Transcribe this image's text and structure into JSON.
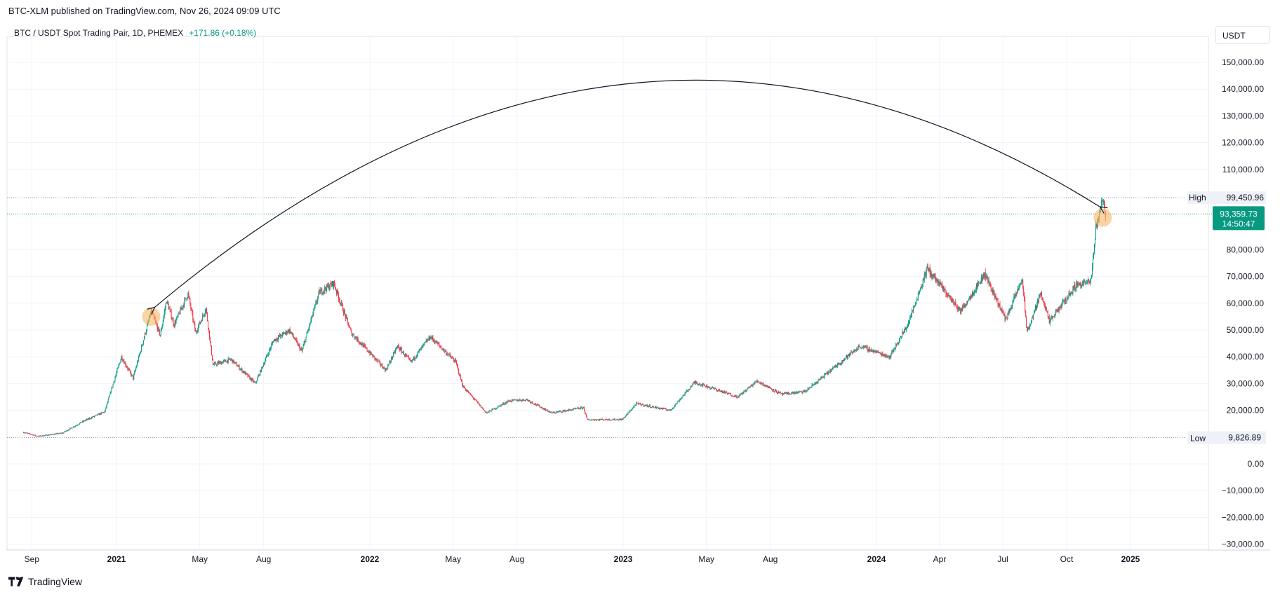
{
  "header": {
    "published": "BTC-XLM published on TradingView.com, Nov 26, 2024 09:09 UTC"
  },
  "legend": {
    "symbol": "BTC / USDT Spot Trading Pair, 1D, PHEMEX",
    "change": "+171.86 (+0.18%)"
  },
  "unit_button": "USDT",
  "footer": {
    "brand": "TradingView",
    "logo_icon": "tradingview-logo-icon"
  },
  "colors": {
    "up": "#089981",
    "down": "#f23645",
    "highlight": "#f7b866",
    "arrow": "#131722"
  },
  "chart_data": {
    "type": "candlestick",
    "yaxis": {
      "ylim": [
        -30000,
        155000
      ],
      "ticks": [
        -30000,
        -20000,
        -10000,
        0,
        20000,
        30000,
        40000,
        50000,
        60000,
        70000,
        80000,
        110000,
        120000,
        130000,
        140000,
        150000
      ],
      "tick_labels": [
        "−30,000.00",
        "−20,000.00",
        "−10,000.00",
        "0.00",
        "20,000.00",
        "30,000.00",
        "40,000.00",
        "50,000.00",
        "60,000.00",
        "70,000.00",
        "80,000.00",
        "110,000.00",
        "120,000.00",
        "130,000.00",
        "140,000.00",
        "150,000.00"
      ],
      "unit": "USDT"
    },
    "xaxis": {
      "range": [
        "2020-08-20",
        "2025-05-20"
      ],
      "ticks": [
        {
          "date": "2020-09-01",
          "label": "Sep",
          "bold": false
        },
        {
          "date": "2021-01-01",
          "label": "2021",
          "bold": true
        },
        {
          "date": "2021-05-01",
          "label": "May",
          "bold": false
        },
        {
          "date": "2021-08-01",
          "label": "Aug",
          "bold": false
        },
        {
          "date": "2022-01-01",
          "label": "2022",
          "bold": true
        },
        {
          "date": "2022-05-01",
          "label": "May",
          "bold": false
        },
        {
          "date": "2022-08-01",
          "label": "Aug",
          "bold": false
        },
        {
          "date": "2023-01-01",
          "label": "2023",
          "bold": true
        },
        {
          "date": "2023-05-01",
          "label": "May",
          "bold": false
        },
        {
          "date": "2023-08-01",
          "label": "Aug",
          "bold": false
        },
        {
          "date": "2024-01-01",
          "label": "2024",
          "bold": true
        },
        {
          "date": "2024-04-01",
          "label": "Apr",
          "bold": false
        },
        {
          "date": "2024-07-01",
          "label": "Jul",
          "bold": false
        },
        {
          "date": "2024-10-01",
          "label": "Oct",
          "bold": false
        },
        {
          "date": "2025-01-01",
          "label": "2025",
          "bold": true
        }
      ]
    },
    "price_path": [
      [
        "2020-08-20",
        11800
      ],
      [
        "2020-09-10",
        10300
      ],
      [
        "2020-10-15",
        11500
      ],
      [
        "2020-11-15",
        16000
      ],
      [
        "2020-12-15",
        19500
      ],
      [
        "2021-01-08",
        40000
      ],
      [
        "2021-01-25",
        32000
      ],
      [
        "2021-02-20",
        57000
      ],
      [
        "2021-03-05",
        48000
      ],
      [
        "2021-03-14",
        61000
      ],
      [
        "2021-03-25",
        52000
      ],
      [
        "2021-04-14",
        63500
      ],
      [
        "2021-04-25",
        49000
      ],
      [
        "2021-05-10",
        58000
      ],
      [
        "2021-05-20",
        37000
      ],
      [
        "2021-06-15",
        39000
      ],
      [
        "2021-07-20",
        30000
      ],
      [
        "2021-08-15",
        46000
      ],
      [
        "2021-09-07",
        50000
      ],
      [
        "2021-09-25",
        42000
      ],
      [
        "2021-10-20",
        64000
      ],
      [
        "2021-11-10",
        67500
      ],
      [
        "2021-12-05",
        49000
      ],
      [
        "2022-01-24",
        35000
      ],
      [
        "2022-02-10",
        44000
      ],
      [
        "2022-03-01",
        38000
      ],
      [
        "2022-03-29",
        47500
      ],
      [
        "2022-05-05",
        38000
      ],
      [
        "2022-05-15",
        29000
      ],
      [
        "2022-06-18",
        19000
      ],
      [
        "2022-07-20",
        23500
      ],
      [
        "2022-08-15",
        24000
      ],
      [
        "2022-09-20",
        19000
      ],
      [
        "2022-11-05",
        21000
      ],
      [
        "2022-11-10",
        16500
      ],
      [
        "2022-12-31",
        16600
      ],
      [
        "2023-01-20",
        22500
      ],
      [
        "2023-03-10",
        20000
      ],
      [
        "2023-04-14",
        30500
      ],
      [
        "2023-06-15",
        25000
      ],
      [
        "2023-07-13",
        31000
      ],
      [
        "2023-08-17",
        26000
      ],
      [
        "2023-09-20",
        27000
      ],
      [
        "2023-10-25",
        34500
      ],
      [
        "2023-12-08",
        44000
      ],
      [
        "2024-01-20",
        40000
      ],
      [
        "2024-02-15",
        52000
      ],
      [
        "2024-03-14",
        73000
      ],
      [
        "2024-05-01",
        57000
      ],
      [
        "2024-06-05",
        71000
      ],
      [
        "2024-07-05",
        54000
      ],
      [
        "2024-07-29",
        69000
      ],
      [
        "2024-08-05",
        49000
      ],
      [
        "2024-08-25",
        64000
      ],
      [
        "2024-09-06",
        53000
      ],
      [
        "2024-10-15",
        67000
      ],
      [
        "2024-11-05",
        68000
      ],
      [
        "2024-11-12",
        88000
      ],
      [
        "2024-11-22",
        99400
      ],
      [
        "2024-11-26",
        93360
      ]
    ],
    "last_price": {
      "value": 93359.73,
      "label": "93,359.73",
      "countdown": "14:50:47"
    },
    "high": {
      "label": "High",
      "value": 99450.96,
      "value_label": "99,450.96",
      "date": "2024-11-22"
    },
    "low": {
      "label": "Low",
      "value": 9826.89,
      "value_label": "9,826.89",
      "date": "2020-09-08"
    },
    "annotations": {
      "arc": {
        "from": {
          "date": "2024-11-18",
          "value": 96000
        },
        "to": {
          "date": "2021-02-25",
          "value": 58500
        },
        "peak_value": 142000
      },
      "highlights": [
        {
          "date": "2021-02-20",
          "value": 55000
        },
        {
          "date": "2024-11-22",
          "value": 92000
        }
      ]
    }
  }
}
